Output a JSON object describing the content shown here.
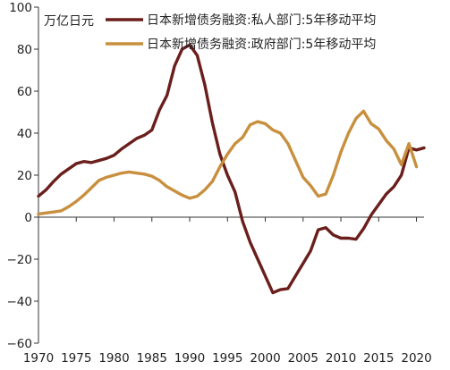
{
  "chart_data": {
    "type": "line",
    "title": "",
    "unit_label": "万亿日元",
    "xlabel": "",
    "ylabel": "",
    "xlim": [
      1970,
      2021
    ],
    "ylim": [
      -60,
      100
    ],
    "x_ticks": [
      1970,
      1975,
      1980,
      1985,
      1990,
      1995,
      2000,
      2005,
      2010,
      2015,
      2020
    ],
    "x_tick_labels": [
      "1970",
      "1975",
      "1980",
      "1985",
      "1990",
      "1995",
      "2000",
      "2005",
      "2010",
      "2015",
      "2020"
    ],
    "y_ticks": [
      100,
      80,
      60,
      40,
      20,
      0,
      -20,
      -40,
      -60
    ],
    "y_tick_labels": [
      "100",
      "80",
      "60",
      "40",
      "20",
      "0",
      "−20",
      "−40",
      "−60"
    ],
    "grid": false,
    "legend_position": "top",
    "series": [
      {
        "name": "日本新增债务融资:私人部门:5年移动平均",
        "color": "#6b1f1c",
        "points": [
          [
            1970,
            10
          ],
          [
            1971,
            13
          ],
          [
            1972,
            17
          ],
          [
            1973,
            20.5
          ],
          [
            1974,
            23
          ],
          [
            1975,
            25.5
          ],
          [
            1976,
            26.5
          ],
          [
            1977,
            26
          ],
          [
            1978,
            27
          ],
          [
            1979,
            28
          ],
          [
            1980,
            29.5
          ],
          [
            1981,
            32.5
          ],
          [
            1982,
            35
          ],
          [
            1983,
            37.5
          ],
          [
            1984,
            39
          ],
          [
            1985,
            41.5
          ],
          [
            1986,
            51
          ],
          [
            1987,
            58
          ],
          [
            1988,
            72
          ],
          [
            1989,
            80
          ],
          [
            1990,
            82
          ],
          [
            1991,
            77
          ],
          [
            1992,
            63
          ],
          [
            1993,
            45
          ],
          [
            1994,
            30
          ],
          [
            1995,
            20
          ],
          [
            1996,
            12
          ],
          [
            1997,
            -2
          ],
          [
            1998,
            -12
          ],
          [
            1999,
            -20
          ],
          [
            2000,
            -28
          ],
          [
            2001,
            -36
          ],
          [
            2002,
            -34.5
          ],
          [
            2003,
            -34
          ],
          [
            2004,
            -28
          ],
          [
            2005,
            -22
          ],
          [
            2006,
            -16
          ],
          [
            2007,
            -6
          ],
          [
            2008,
            -5
          ],
          [
            2009,
            -8.5
          ],
          [
            2010,
            -10
          ],
          [
            2011,
            -10
          ],
          [
            2012,
            -10.5
          ],
          [
            2013,
            -5.5
          ],
          [
            2014,
            1
          ],
          [
            2015,
            6
          ],
          [
            2016,
            11
          ],
          [
            2017,
            14.5
          ],
          [
            2018,
            20
          ],
          [
            2019,
            33
          ],
          [
            2020,
            32
          ],
          [
            2021,
            33
          ]
        ]
      },
      {
        "name": "日本新增债务融资:政府部门:5年移动平均",
        "color": "#c8903e",
        "points": [
          [
            1970,
            1.5
          ],
          [
            1971,
            2
          ],
          [
            1972,
            2.5
          ],
          [
            1973,
            3
          ],
          [
            1974,
            5
          ],
          [
            1975,
            7.5
          ],
          [
            1976,
            10.5
          ],
          [
            1977,
            14
          ],
          [
            1978,
            17.5
          ],
          [
            1979,
            19
          ],
          [
            1980,
            20
          ],
          [
            1981,
            21
          ],
          [
            1982,
            21.5
          ],
          [
            1983,
            21
          ],
          [
            1984,
            20.5
          ],
          [
            1985,
            19.5
          ],
          [
            1986,
            17.5
          ],
          [
            1987,
            14.5
          ],
          [
            1988,
            12.5
          ],
          [
            1989,
            10.5
          ],
          [
            1990,
            9
          ],
          [
            1991,
            10
          ],
          [
            1992,
            13
          ],
          [
            1993,
            17
          ],
          [
            1994,
            24
          ],
          [
            1995,
            30
          ],
          [
            1996,
            35
          ],
          [
            1997,
            38
          ],
          [
            1998,
            44
          ],
          [
            1999,
            45.5
          ],
          [
            2000,
            44.5
          ],
          [
            2001,
            41.5
          ],
          [
            2002,
            40
          ],
          [
            2003,
            35
          ],
          [
            2004,
            27
          ],
          [
            2005,
            19
          ],
          [
            2006,
            15
          ],
          [
            2007,
            10
          ],
          [
            2008,
            11
          ],
          [
            2009,
            20
          ],
          [
            2010,
            31
          ],
          [
            2011,
            40
          ],
          [
            2012,
            47
          ],
          [
            2013,
            50.5
          ],
          [
            2014,
            44.5
          ],
          [
            2015,
            42
          ],
          [
            2016,
            36.5
          ],
          [
            2017,
            32.5
          ],
          [
            2018,
            25
          ],
          [
            2019,
            35
          ],
          [
            2020,
            24
          ]
        ]
      }
    ]
  }
}
